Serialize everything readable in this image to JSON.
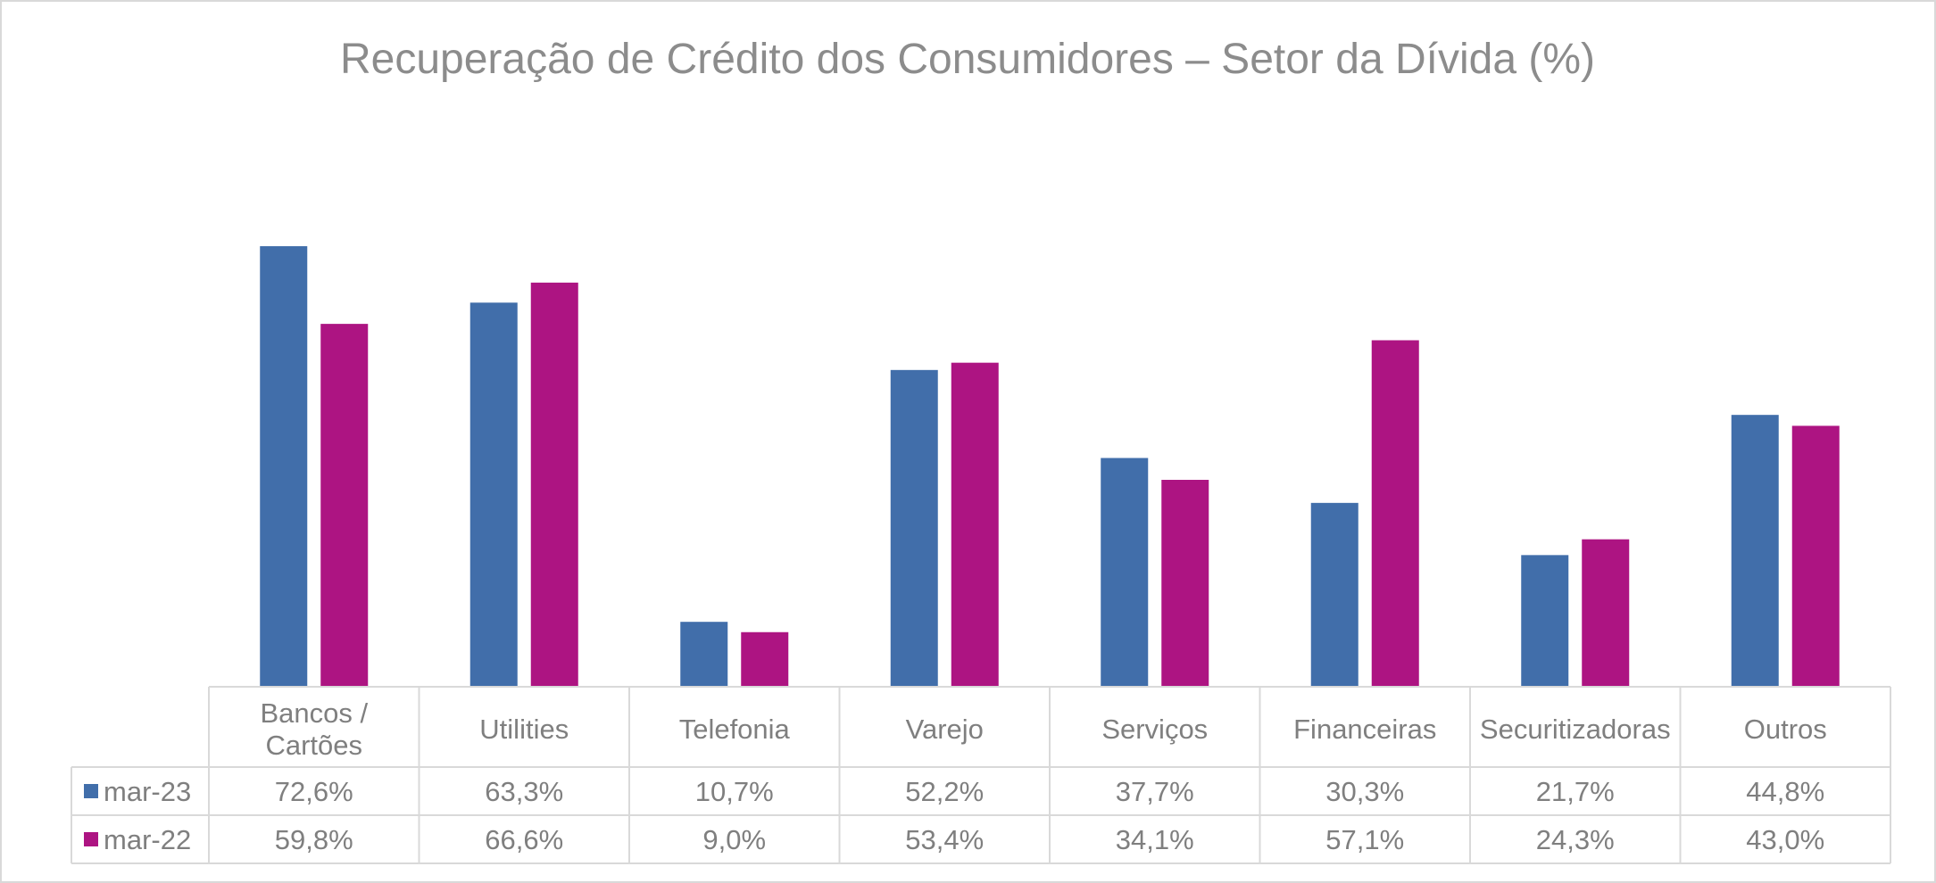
{
  "chart_data": {
    "type": "bar",
    "title": "Recuperação de Crédito dos Consumidores – Setor da Dívida (%)",
    "categories": [
      [
        "Bancos /",
        "Cartões"
      ],
      [
        "Utilities"
      ],
      [
        "Telefonia"
      ],
      [
        "Varejo"
      ],
      [
        "Serviços"
      ],
      [
        "Financeiras"
      ],
      [
        "Securitizadoras"
      ],
      [
        "Outros"
      ]
    ],
    "series": [
      {
        "name": "mar-23",
        "color": "#416EAA",
        "values": [
          72.6,
          63.3,
          10.7,
          52.2,
          37.7,
          30.3,
          21.7,
          44.8
        ],
        "labels": [
          "72,6%",
          "63,3%",
          "10,7%",
          "52,2%",
          "37,7%",
          "30,3%",
          "21,7%",
          "44,8%"
        ]
      },
      {
        "name": "mar-22",
        "color": "#AD1482",
        "values": [
          59.8,
          66.6,
          9.0,
          53.4,
          34.1,
          57.1,
          24.3,
          43.0
        ],
        "labels": [
          "59,8%",
          "66,6%",
          "9,0%",
          "53,4%",
          "34,1%",
          "57,1%",
          "24,3%",
          "43,0%"
        ]
      }
    ],
    "ylim": [
      0,
      80
    ],
    "data_table": true,
    "legend": "left of data table rows"
  }
}
